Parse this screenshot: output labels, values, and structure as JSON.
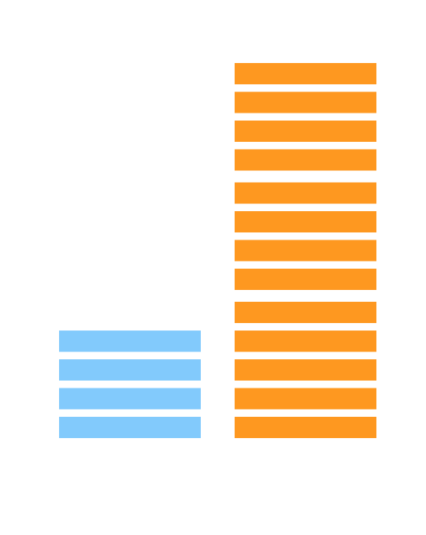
{
  "chart_data": {
    "type": "pictograph",
    "categories": [
      null,
      null
    ],
    "values": [
      4,
      13
    ],
    "colors": [
      "#82cafc",
      "#fe9820"
    ]
  }
}
